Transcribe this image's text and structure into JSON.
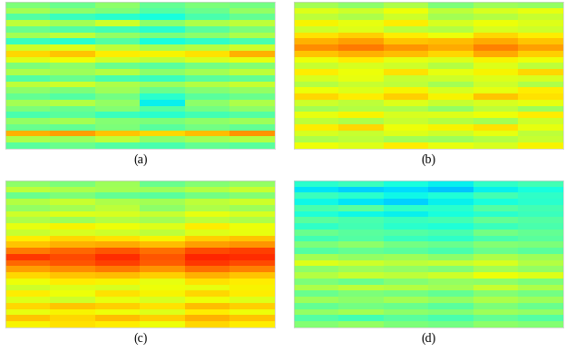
{
  "chart_data": [
    {
      "type": "heatmap",
      "xlabel": "(a)",
      "color_range": [
        0,
        1
      ],
      "tick_labels": false,
      "cells": [
        [
          0.5,
          0.48,
          0.52,
          0.47,
          0.5,
          0.49
        ],
        [
          0.55,
          0.52,
          0.5,
          0.45,
          0.48,
          0.53
        ],
        [
          0.45,
          0.42,
          0.4,
          0.38,
          0.44,
          0.47
        ],
        [
          0.58,
          0.55,
          0.6,
          0.52,
          0.56,
          0.58
        ],
        [
          0.48,
          0.45,
          0.43,
          0.4,
          0.46,
          0.5
        ],
        [
          0.55,
          0.58,
          0.53,
          0.5,
          0.52,
          0.56
        ],
        [
          0.42,
          0.4,
          0.45,
          0.38,
          0.41,
          0.44
        ],
        [
          0.6,
          0.62,
          0.58,
          0.55,
          0.57,
          0.6
        ],
        [
          0.68,
          0.7,
          0.66,
          0.65,
          0.67,
          0.72
        ],
        [
          0.62,
          0.64,
          0.6,
          0.58,
          0.61,
          0.63
        ],
        [
          0.5,
          0.52,
          0.48,
          0.46,
          0.49,
          0.51
        ],
        [
          0.56,
          0.54,
          0.57,
          0.52,
          0.55,
          0.58
        ],
        [
          0.45,
          0.48,
          0.44,
          0.42,
          0.46,
          0.47
        ],
        [
          0.58,
          0.6,
          0.56,
          0.54,
          0.57,
          0.59
        ],
        [
          0.52,
          0.5,
          0.54,
          0.48,
          0.51,
          0.53
        ],
        [
          0.47,
          0.45,
          0.49,
          0.4,
          0.46,
          0.48
        ],
        [
          0.55,
          0.57,
          0.53,
          0.36,
          0.52,
          0.56
        ],
        [
          0.5,
          0.48,
          0.51,
          0.45,
          0.49,
          0.52
        ],
        [
          0.44,
          0.46,
          0.42,
          0.4,
          0.43,
          0.45
        ],
        [
          0.53,
          0.55,
          0.51,
          0.5,
          0.52,
          0.54
        ],
        [
          0.48,
          0.47,
          0.5,
          0.46,
          0.49,
          0.47
        ],
        [
          0.72,
          0.74,
          0.7,
          0.68,
          0.71,
          0.75
        ],
        [
          0.56,
          0.54,
          0.58,
          0.52,
          0.55,
          0.57
        ],
        [
          0.46,
          0.48,
          0.45,
          0.44,
          0.47,
          0.46
        ]
      ]
    },
    {
      "type": "heatmap",
      "xlabel": "(b)",
      "color_range": [
        0,
        1
      ],
      "tick_labels": false,
      "cells": [
        [
          0.55,
          0.52,
          0.56,
          0.5,
          0.54,
          0.53
        ],
        [
          0.62,
          0.6,
          0.64,
          0.58,
          0.61,
          0.63
        ],
        [
          0.58,
          0.56,
          0.6,
          0.55,
          0.57,
          0.59
        ],
        [
          0.65,
          0.63,
          0.66,
          0.61,
          0.64,
          0.62
        ],
        [
          0.6,
          0.62,
          0.58,
          0.57,
          0.61,
          0.6
        ],
        [
          0.67,
          0.69,
          0.66,
          0.64,
          0.68,
          0.66
        ],
        [
          0.72,
          0.74,
          0.7,
          0.71,
          0.73,
          0.7
        ],
        [
          0.76,
          0.78,
          0.75,
          0.73,
          0.77,
          0.74
        ],
        [
          0.7,
          0.72,
          0.71,
          0.68,
          0.73,
          0.69
        ],
        [
          0.64,
          0.66,
          0.63,
          0.62,
          0.65,
          0.64
        ],
        [
          0.59,
          0.61,
          0.6,
          0.57,
          0.62,
          0.58
        ],
        [
          0.66,
          0.64,
          0.67,
          0.63,
          0.65,
          0.68
        ],
        [
          0.61,
          0.63,
          0.59,
          0.6,
          0.62,
          0.61
        ],
        [
          0.57,
          0.59,
          0.58,
          0.55,
          0.6,
          0.56
        ],
        [
          0.64,
          0.62,
          0.65,
          0.61,
          0.63,
          0.66
        ],
        [
          0.68,
          0.66,
          0.69,
          0.65,
          0.7,
          0.67
        ],
        [
          0.6,
          0.58,
          0.62,
          0.59,
          0.61,
          0.63
        ],
        [
          0.55,
          0.57,
          0.56,
          0.53,
          0.58,
          0.54
        ],
        [
          0.63,
          0.65,
          0.61,
          0.62,
          0.64,
          0.66
        ],
        [
          0.58,
          0.56,
          0.59,
          0.57,
          0.55,
          0.6
        ],
        [
          0.66,
          0.68,
          0.64,
          0.65,
          0.67,
          0.63
        ],
        [
          0.61,
          0.59,
          0.62,
          0.6,
          0.63,
          0.58
        ],
        [
          0.56,
          0.58,
          0.55,
          0.54,
          0.57,
          0.59
        ],
        [
          0.64,
          0.62,
          0.66,
          0.63,
          0.61,
          0.65
        ]
      ]
    },
    {
      "type": "heatmap",
      "xlabel": "(c)",
      "color_range": [
        0,
        1
      ],
      "tick_labels": false,
      "cells": [
        [
          0.52,
          0.5,
          0.54,
          0.48,
          0.51,
          0.53
        ],
        [
          0.58,
          0.56,
          0.55,
          0.54,
          0.57,
          0.59
        ],
        [
          0.48,
          0.5,
          0.47,
          0.46,
          0.49,
          0.51
        ],
        [
          0.57,
          0.59,
          0.56,
          0.55,
          0.58,
          0.6
        ],
        [
          0.53,
          0.55,
          0.58,
          0.52,
          0.56,
          0.54
        ],
        [
          0.6,
          0.62,
          0.61,
          0.59,
          0.63,
          0.61
        ],
        [
          0.56,
          0.54,
          0.57,
          0.55,
          0.58,
          0.56
        ],
        [
          0.63,
          0.65,
          0.64,
          0.62,
          0.66,
          0.64
        ],
        [
          0.59,
          0.61,
          0.6,
          0.58,
          0.62,
          0.63
        ],
        [
          0.66,
          0.68,
          0.67,
          0.65,
          0.69,
          0.7
        ],
        [
          0.7,
          0.72,
          0.73,
          0.71,
          0.74,
          0.75
        ],
        [
          0.78,
          0.8,
          0.82,
          0.79,
          0.83,
          0.84
        ],
        [
          0.85,
          0.83,
          0.86,
          0.82,
          0.87,
          0.86
        ],
        [
          0.8,
          0.82,
          0.84,
          0.81,
          0.85,
          0.83
        ],
        [
          0.74,
          0.76,
          0.78,
          0.75,
          0.79,
          0.77
        ],
        [
          0.68,
          0.7,
          0.71,
          0.69,
          0.72,
          0.7
        ],
        [
          0.64,
          0.66,
          0.65,
          0.63,
          0.67,
          0.66
        ],
        [
          0.6,
          0.62,
          0.61,
          0.64,
          0.63,
          0.65
        ],
        [
          0.66,
          0.64,
          0.67,
          0.65,
          0.68,
          0.66
        ],
        [
          0.62,
          0.6,
          0.63,
          0.61,
          0.64,
          0.62
        ],
        [
          0.68,
          0.7,
          0.69,
          0.67,
          0.71,
          0.69
        ],
        [
          0.63,
          0.65,
          0.64,
          0.62,
          0.66,
          0.64
        ],
        [
          0.7,
          0.68,
          0.71,
          0.69,
          0.72,
          0.7
        ],
        [
          0.65,
          0.67,
          0.66,
          0.64,
          0.68,
          0.66
        ]
      ]
    },
    {
      "type": "heatmap",
      "xlabel": "(d)",
      "color_range": [
        0,
        1
      ],
      "tick_labels": false,
      "cells": [
        [
          0.4,
          0.42,
          0.38,
          0.36,
          0.41,
          0.43
        ],
        [
          0.35,
          0.33,
          0.34,
          0.32,
          0.36,
          0.38
        ],
        [
          0.42,
          0.4,
          0.37,
          0.39,
          0.43,
          0.41
        ],
        [
          0.37,
          0.35,
          0.33,
          0.36,
          0.38,
          0.4
        ],
        [
          0.44,
          0.46,
          0.41,
          0.4,
          0.45,
          0.43
        ],
        [
          0.39,
          0.37,
          0.36,
          0.38,
          0.4,
          0.42
        ],
        [
          0.46,
          0.44,
          0.42,
          0.43,
          0.47,
          0.45
        ],
        [
          0.41,
          0.43,
          0.4,
          0.39,
          0.42,
          0.44
        ],
        [
          0.48,
          0.46,
          0.45,
          0.44,
          0.49,
          0.47
        ],
        [
          0.43,
          0.45,
          0.42,
          0.41,
          0.44,
          0.46
        ],
        [
          0.5,
          0.52,
          0.49,
          0.48,
          0.51,
          0.5
        ],
        [
          0.45,
          0.47,
          0.46,
          0.44,
          0.48,
          0.46
        ],
        [
          0.55,
          0.53,
          0.54,
          0.52,
          0.56,
          0.54
        ],
        [
          0.62,
          0.6,
          0.58,
          0.59,
          0.61,
          0.57
        ],
        [
          0.52,
          0.54,
          0.53,
          0.51,
          0.55,
          0.53
        ],
        [
          0.57,
          0.59,
          0.58,
          0.6,
          0.64,
          0.62
        ],
        [
          0.5,
          0.48,
          0.51,
          0.53,
          0.52,
          0.5
        ],
        [
          0.56,
          0.58,
          0.57,
          0.55,
          0.59,
          0.56
        ],
        [
          0.48,
          0.5,
          0.49,
          0.47,
          0.51,
          0.49
        ],
        [
          0.54,
          0.52,
          0.55,
          0.53,
          0.56,
          0.54
        ],
        [
          0.47,
          0.49,
          0.48,
          0.46,
          0.5,
          0.48
        ],
        [
          0.53,
          0.55,
          0.52,
          0.51,
          0.54,
          0.53
        ],
        [
          0.45,
          0.43,
          0.46,
          0.44,
          0.47,
          0.45
        ],
        [
          0.51,
          0.53,
          0.5,
          0.49,
          0.52,
          0.51
        ]
      ]
    }
  ]
}
